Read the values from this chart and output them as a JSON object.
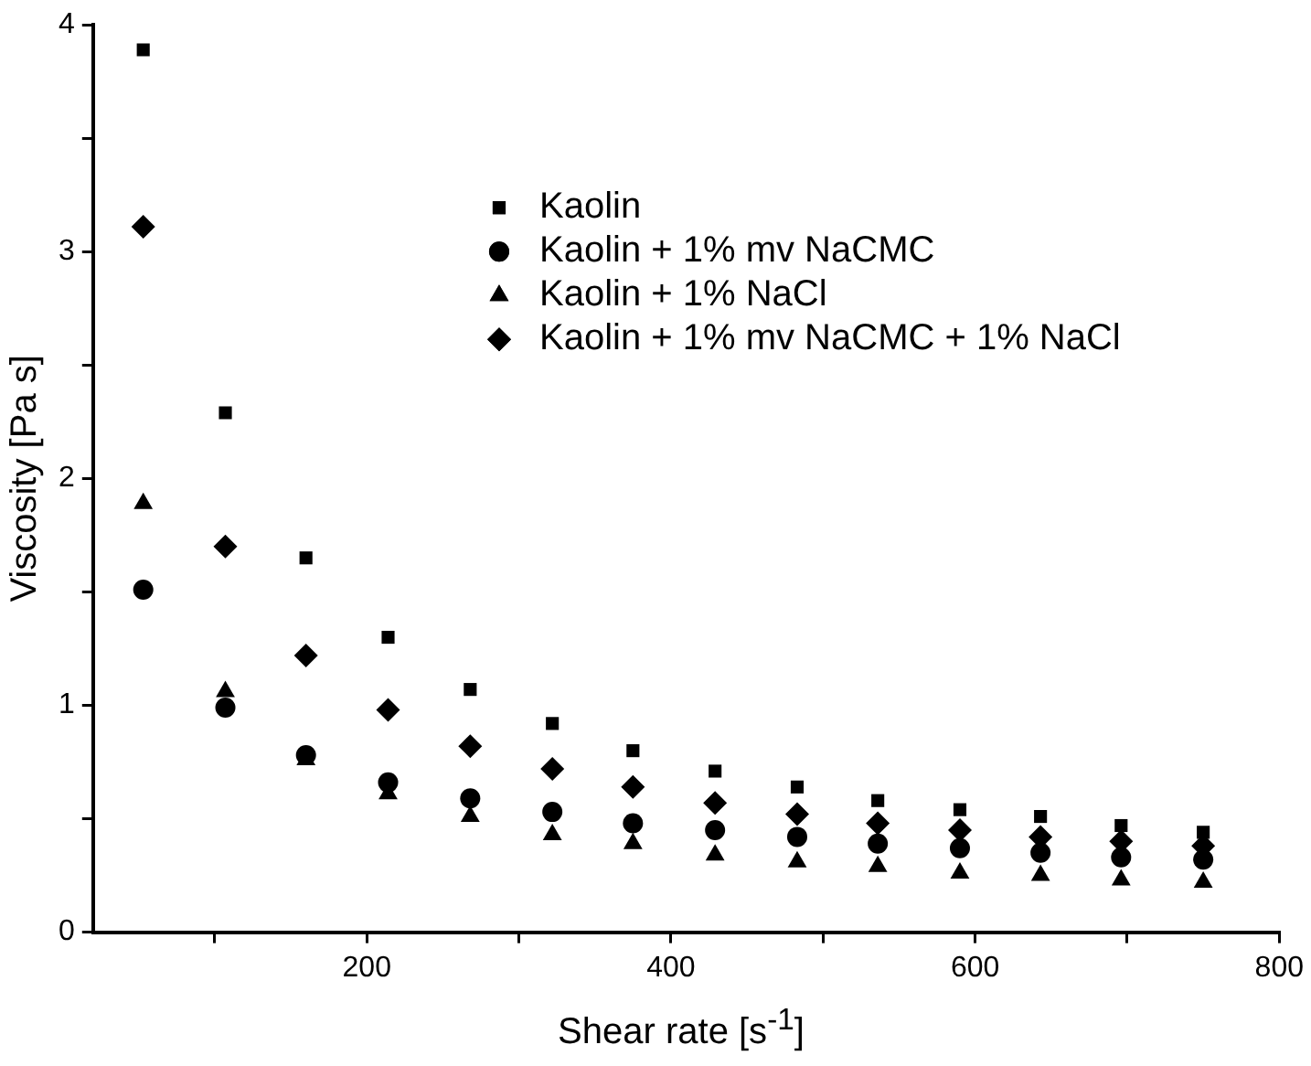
{
  "chart_data": {
    "type": "scatter",
    "xlabel": "Shear rate [s$^{-1}$]",
    "ylabel": "Viscosity [Pa s]",
    "x": [
      53,
      107,
      160,
      214,
      268,
      322,
      375,
      429,
      483,
      536,
      590,
      643,
      696,
      750
    ],
    "xlim": [
      20,
      800
    ],
    "xticks": [
      {
        "value": 100,
        "label": null
      },
      200,
      {
        "value": 300,
        "label": null
      },
      400,
      {
        "value": 500,
        "label": null
      },
      600,
      {
        "value": 700,
        "label": null
      },
      800
    ],
    "ylim": [
      0,
      4
    ],
    "yticks": [
      0,
      {
        "value": 0.5,
        "label": null
      },
      1,
      {
        "value": 1.5,
        "label": null
      },
      2,
      {
        "value": 2.5,
        "label": null
      },
      3,
      {
        "value": 3.5,
        "label": null
      },
      4
    ],
    "grid": false,
    "legend": "top right",
    "series": [
      {
        "name": "Kaolin",
        "color": "#000000",
        "marker": "square",
        "values": [
          3.89,
          2.29,
          1.65,
          1.3,
          1.07,
          0.92,
          0.8,
          0.71,
          0.64,
          0.58,
          0.54,
          0.51,
          0.47,
          0.44
        ]
      },
      {
        "name": "Kaolin + 1% mv NaCMC",
        "color": "#000000",
        "marker": "circle",
        "values": [
          1.51,
          0.99,
          0.78,
          0.66,
          0.59,
          0.53,
          0.48,
          0.45,
          0.42,
          0.39,
          0.37,
          0.35,
          0.33,
          0.32
        ]
      },
      {
        "name": "Kaolin + 1% NaCl",
        "color": "#000000",
        "marker": "triangle",
        "values": [
          1.89,
          1.06,
          0.76,
          0.61,
          0.51,
          0.43,
          0.39,
          0.34,
          0.31,
          0.29,
          0.26,
          0.25,
          0.23,
          0.22
        ]
      },
      {
        "name": "Kaolin + 1% mv NaCMC + 1% NaCl",
        "color": "#000000",
        "marker": "diamond",
        "values": [
          3.11,
          1.7,
          1.22,
          0.98,
          0.82,
          0.72,
          0.64,
          0.57,
          0.52,
          0.48,
          0.45,
          0.42,
          0.4,
          0.38
        ]
      }
    ]
  }
}
